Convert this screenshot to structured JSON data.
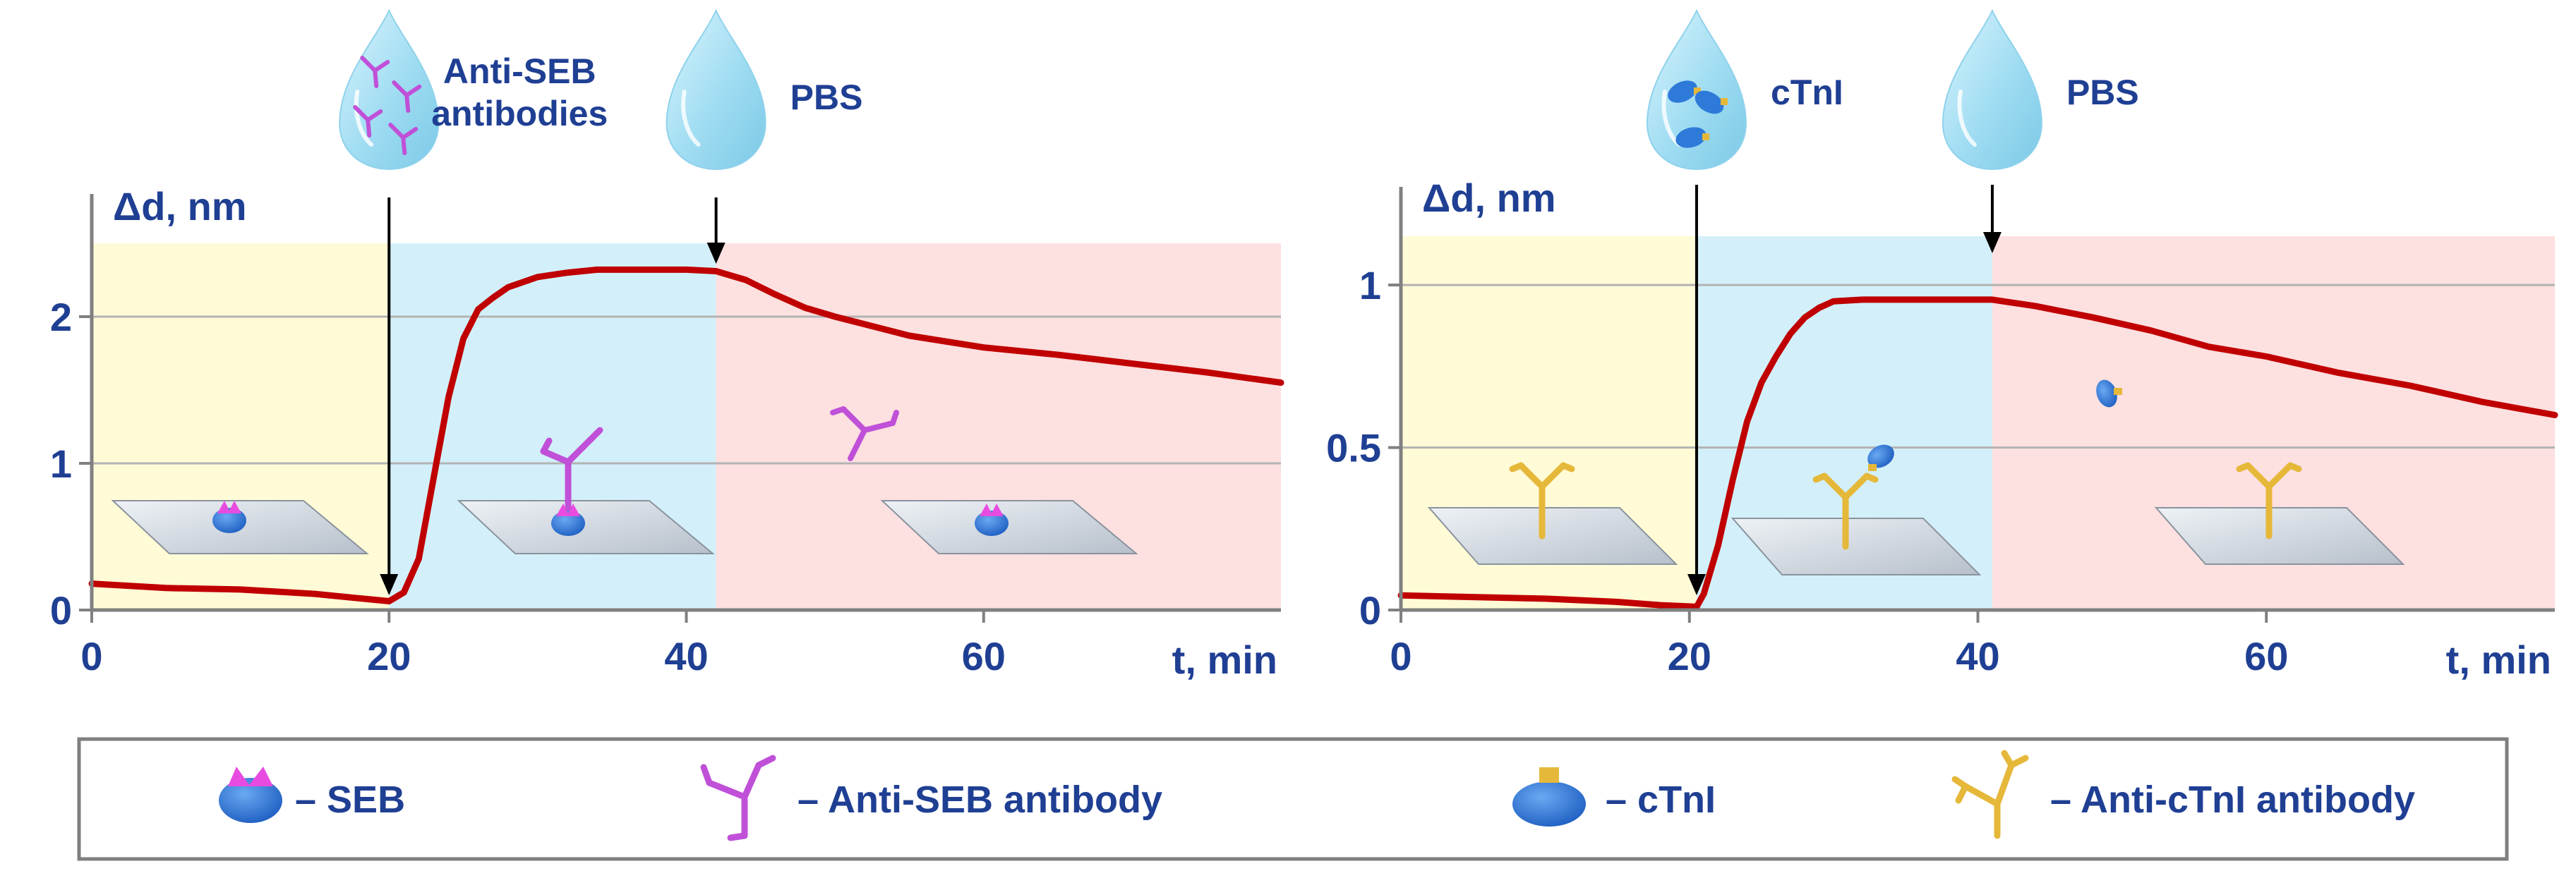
{
  "figure": {
    "legend": [
      {
        "symbol": "seb",
        "text": "– SEB"
      },
      {
        "symbol": "anti-seb-antibody",
        "text": "– Anti-SEB antibody"
      },
      {
        "symbol": "ctni",
        "text": "– cTnI"
      },
      {
        "symbol": "anti-ctni-antibody",
        "text": "– Anti-cTnI antibody"
      }
    ],
    "colors": {
      "curve": "#c00000",
      "label_text": "#1f3f93",
      "phase_baseline": "#fffbd6",
      "phase_association": "#d3f0fa",
      "phase_dissociation": "#fde0e0",
      "droplet": "#a9e3f5",
      "seb_body": "#2e7ad9",
      "seb_cap": "#e84be0",
      "anti_seb_antibody": "#c050d8",
      "anti_ctni_antibody": "#e6b83a"
    }
  },
  "chart_data": [
    {
      "type": "line",
      "title": "",
      "ylabel": "Δd, nm",
      "xlabel": "t, min",
      "xlim": [
        0,
        80
      ],
      "ylim": [
        0,
        2.5
      ],
      "xticks": [
        "0",
        "20",
        "40",
        "60"
      ],
      "yticks": [
        "0",
        "1",
        "2"
      ],
      "grid": "horizontal",
      "phases": [
        {
          "from": 0,
          "to": 20,
          "color": "#fffbd6"
        },
        {
          "from": 20,
          "to": 42,
          "color": "#d3f0fa"
        },
        {
          "from": 42,
          "to": 80,
          "color": "#fde0e0"
        }
      ],
      "injections": [
        {
          "x": 20,
          "label_lines": [
            "Anti-SEB",
            "antibodies"
          ],
          "droplet": "antibodies"
        },
        {
          "x": 42,
          "label_lines": [
            "PBS"
          ],
          "droplet": "plain"
        }
      ],
      "series": [
        {
          "x": [
            0,
            5,
            10,
            15,
            18,
            20,
            21,
            22,
            23,
            24,
            25,
            26,
            27,
            28,
            30,
            32,
            34,
            36,
            38,
            40,
            42,
            44,
            46,
            48,
            50,
            55,
            60,
            65,
            70,
            75,
            80
          ],
          "y": [
            0.18,
            0.15,
            0.14,
            0.11,
            0.08,
            0.06,
            0.12,
            0.35,
            0.9,
            1.45,
            1.85,
            2.05,
            2.13,
            2.2,
            2.27,
            2.3,
            2.32,
            2.32,
            2.32,
            2.32,
            2.31,
            2.25,
            2.15,
            2.06,
            2.0,
            1.87,
            1.79,
            1.74,
            1.68,
            1.62,
            1.55
          ]
        }
      ]
    },
    {
      "type": "line",
      "title": "",
      "ylabel": "Δd, nm",
      "xlabel": "t, min",
      "xlim": [
        0,
        80
      ],
      "ylim": [
        0,
        1.15
      ],
      "xticks": [
        "0",
        "20",
        "40",
        "60"
      ],
      "yticks": [
        "0",
        "0.5",
        "1"
      ],
      "grid": "horizontal",
      "phases": [
        {
          "from": 0,
          "to": 20.5,
          "color": "#fffbd6"
        },
        {
          "from": 20.5,
          "to": 41,
          "color": "#d3f0fa"
        },
        {
          "from": 41,
          "to": 80,
          "color": "#fde0e0"
        }
      ],
      "injections": [
        {
          "x": 20.5,
          "label_lines": [
            "cTnI"
          ],
          "droplet": "antigen"
        },
        {
          "x": 41,
          "label_lines": [
            "PBS"
          ],
          "droplet": "plain"
        }
      ],
      "series": [
        {
          "x": [
            0,
            5,
            10,
            15,
            18,
            20.5,
            21,
            22,
            23,
            24,
            25,
            26,
            27,
            28,
            29,
            30,
            32,
            35,
            38,
            41,
            44,
            48,
            52,
            56,
            60,
            65,
            70,
            75,
            80
          ],
          "y": [
            0.045,
            0.04,
            0.035,
            0.025,
            0.015,
            0.01,
            0.05,
            0.2,
            0.4,
            0.58,
            0.7,
            0.78,
            0.85,
            0.9,
            0.93,
            0.95,
            0.955,
            0.955,
            0.955,
            0.955,
            0.935,
            0.9,
            0.86,
            0.81,
            0.78,
            0.73,
            0.69,
            0.64,
            0.6
          ]
        }
      ]
    }
  ]
}
